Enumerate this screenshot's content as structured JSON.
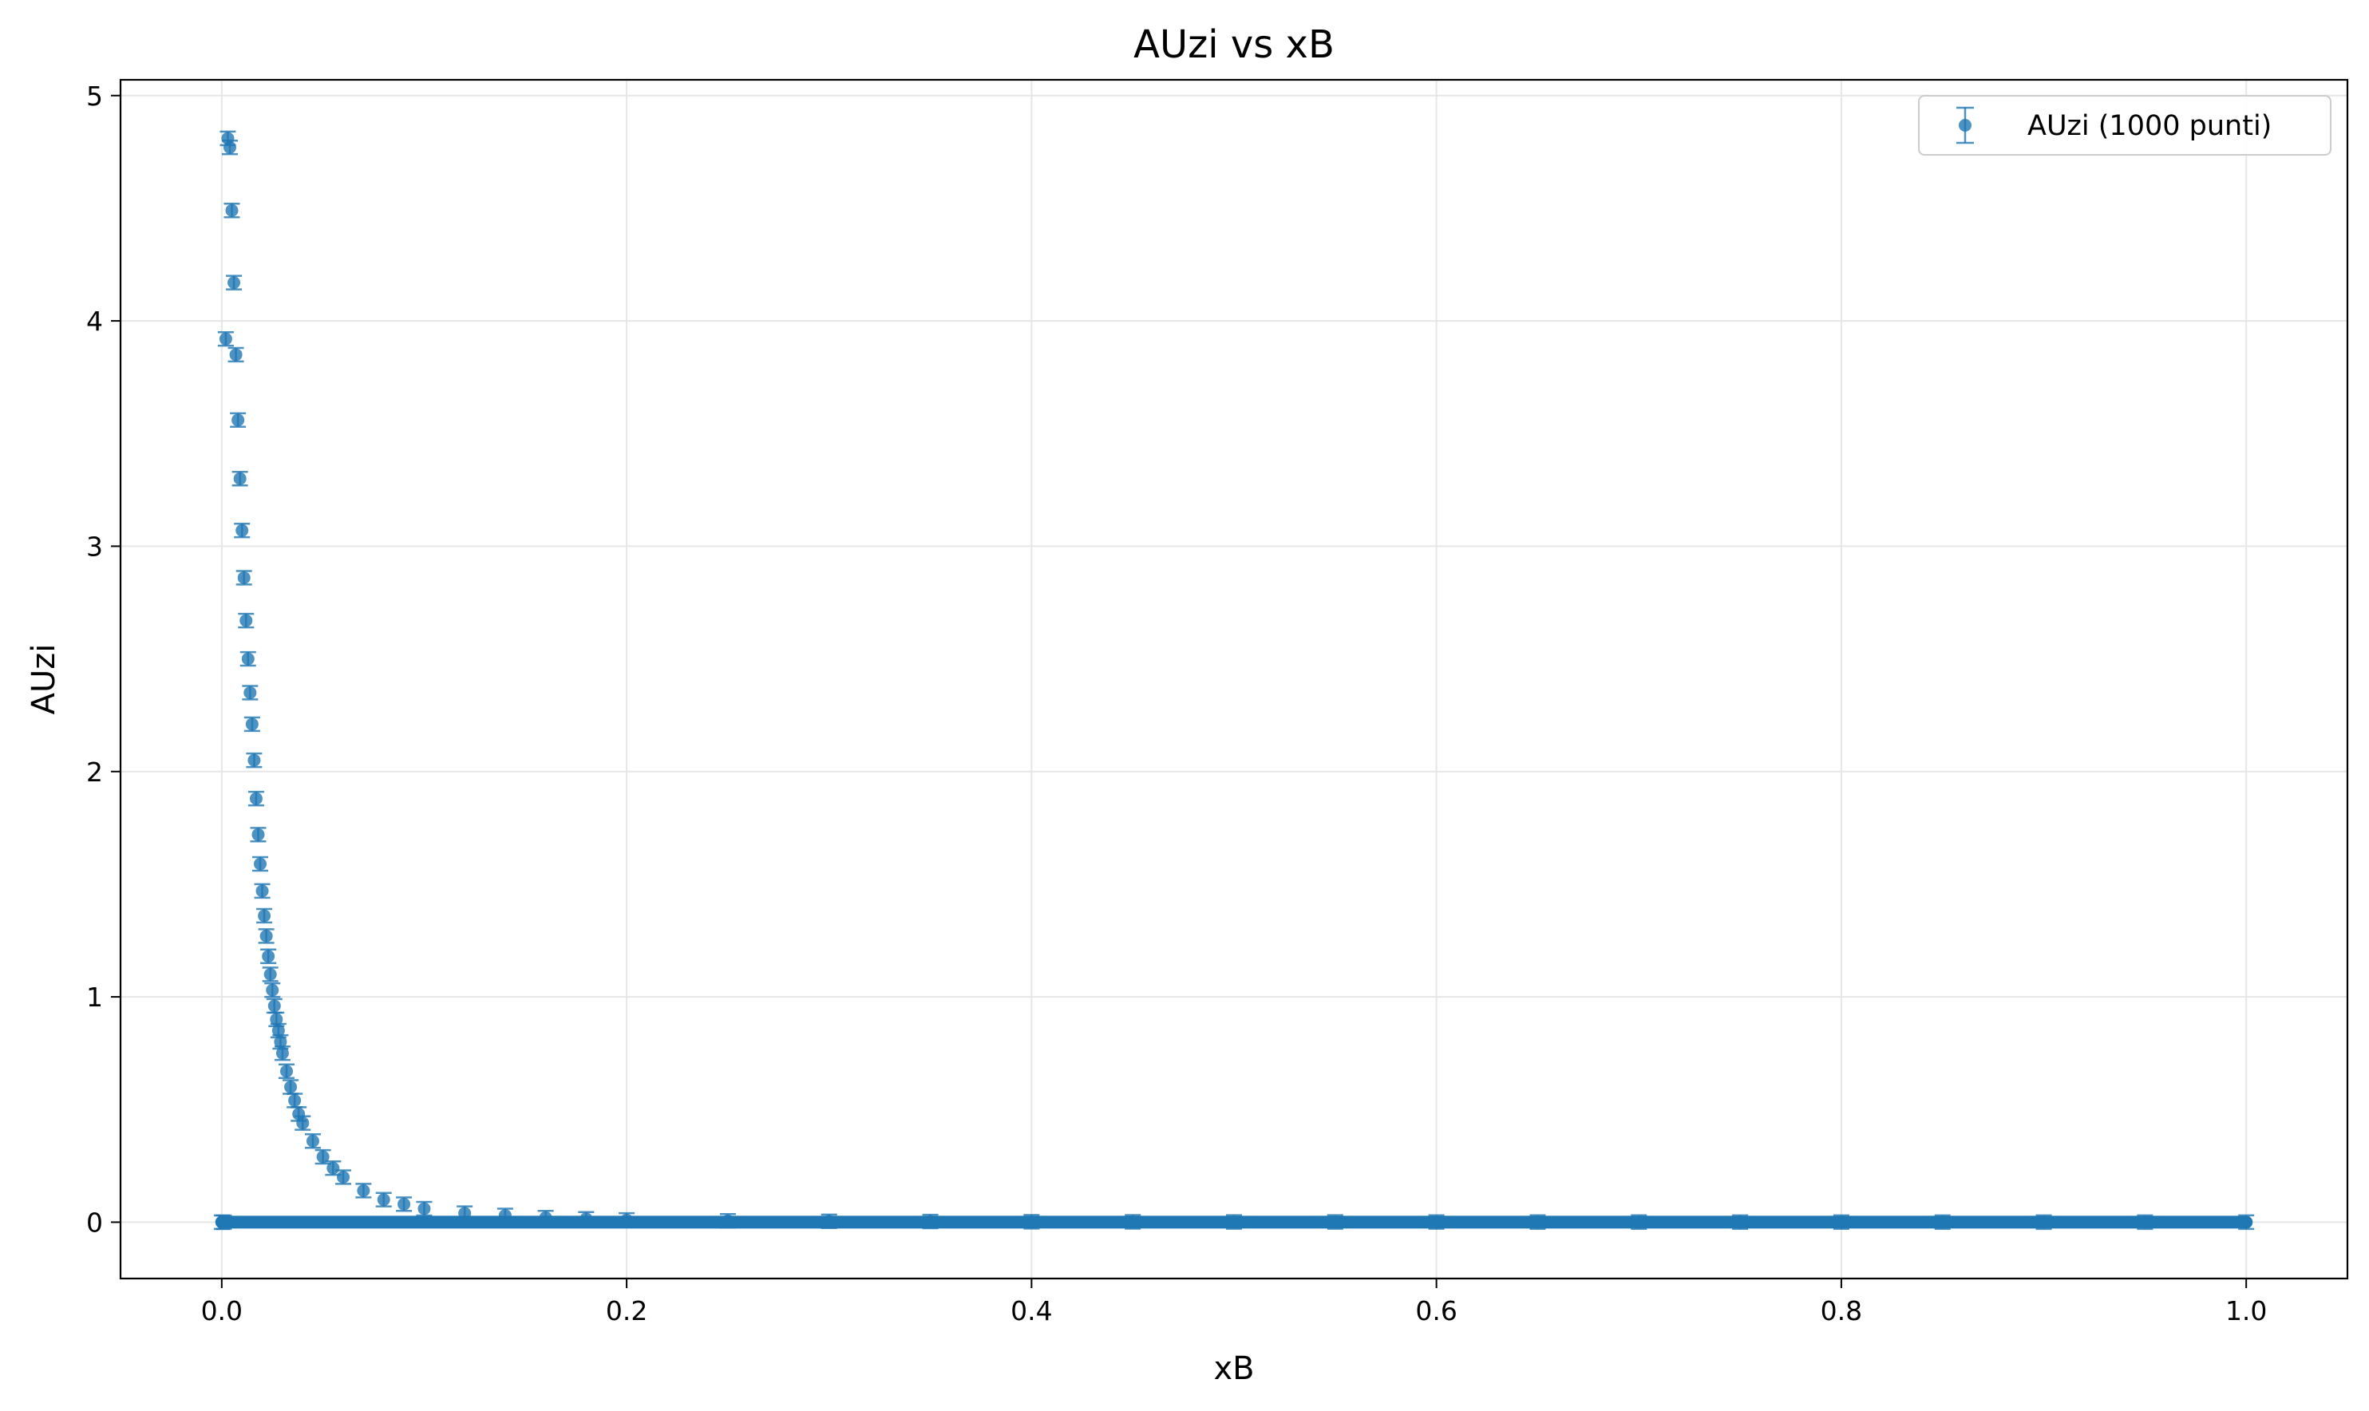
{
  "chart_data": {
    "type": "scatter",
    "title": "AUzi vs xB",
    "xlabel": "xB",
    "ylabel": "AUzi",
    "xlim": [
      -0.05,
      1.05
    ],
    "ylim": [
      -0.25,
      5.07
    ],
    "x_ticks": [
      0.0,
      0.2,
      0.4,
      0.6,
      0.8,
      1.0
    ],
    "x_tick_labels": [
      "0.0",
      "0.2",
      "0.4",
      "0.6",
      "0.8",
      "1.0"
    ],
    "y_ticks": [
      0,
      1,
      2,
      3,
      4,
      5
    ],
    "y_tick_labels": [
      "0",
      "1",
      "2",
      "3",
      "4",
      "5"
    ],
    "grid": true,
    "legend_position": "top-right",
    "error_bars": true,
    "colors": {
      "series": "#1f77b4",
      "grid": "#e6e6e6",
      "axes": "#000000"
    },
    "series": [
      {
        "name": "AUzi (1000 punti)",
        "x": [
          0.0,
          0.001,
          0.002,
          0.003,
          0.004,
          0.005,
          0.006,
          0.007,
          0.008,
          0.009,
          0.01,
          0.011,
          0.012,
          0.013,
          0.014,
          0.015,
          0.016,
          0.017,
          0.018,
          0.019,
          0.02,
          0.021,
          0.022,
          0.023,
          0.024,
          0.025,
          0.026,
          0.027,
          0.028,
          0.029,
          0.03,
          0.032,
          0.034,
          0.036,
          0.038,
          0.04,
          0.045,
          0.05,
          0.055,
          0.06,
          0.07,
          0.08,
          0.09,
          0.1,
          0.12,
          0.14,
          0.16,
          0.18,
          0.2,
          0.25,
          0.3,
          0.35,
          0.4,
          0.45,
          0.5,
          0.55,
          0.6,
          0.65,
          0.7,
          0.75,
          0.8,
          0.85,
          0.9,
          0.95,
          1.0
        ],
        "y": [
          0.0,
          0.0,
          3.92,
          4.81,
          4.77,
          4.49,
          4.17,
          3.85,
          3.56,
          3.3,
          3.07,
          2.86,
          2.67,
          2.5,
          2.35,
          2.21,
          2.05,
          1.88,
          1.72,
          1.59,
          1.47,
          1.36,
          1.27,
          1.18,
          1.1,
          1.03,
          0.96,
          0.9,
          0.85,
          0.8,
          0.75,
          0.67,
          0.6,
          0.54,
          0.48,
          0.44,
          0.36,
          0.29,
          0.24,
          0.2,
          0.14,
          0.1,
          0.08,
          0.06,
          0.04,
          0.03,
          0.02,
          0.015,
          0.01,
          0.006,
          0.004,
          0.003,
          0.002,
          0.0015,
          0.001,
          0.001,
          0.0008,
          0.0006,
          0.0005,
          0.0004,
          0.0003,
          0.0003,
          0.0002,
          0.0002,
          0.0002
        ],
        "y_err": 0.03
      }
    ]
  }
}
